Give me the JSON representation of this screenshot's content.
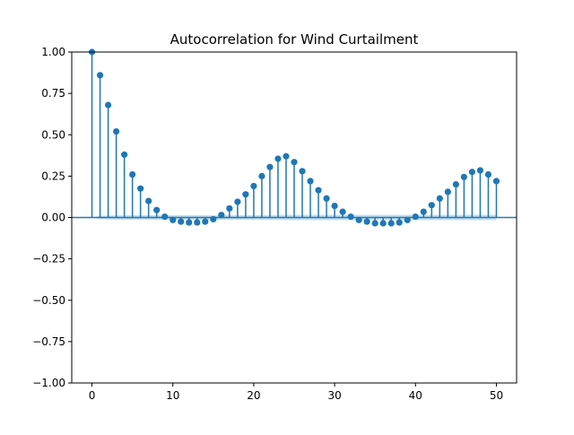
{
  "chart_data": {
    "type": "stem",
    "title": "Autocorrelation for Wind Curtailment",
    "xlabel": "",
    "ylabel": "",
    "xlim": [
      -2.5,
      52.5
    ],
    "ylim": [
      -1.0,
      1.0
    ],
    "x_ticks": [
      0,
      10,
      20,
      30,
      40,
      50
    ],
    "y_ticks": [
      -1.0,
      -0.75,
      -0.5,
      -0.25,
      0.0,
      0.25,
      0.5,
      0.75,
      1.0
    ],
    "x_tick_labels": [
      "0",
      "10",
      "20",
      "30",
      "40",
      "50"
    ],
    "y_tick_labels": [
      "−1.00",
      "−0.75",
      "−0.50",
      "−0.25",
      "0.00",
      "0.25",
      "0.50",
      "0.75",
      "1.00"
    ],
    "lags": [
      0,
      1,
      2,
      3,
      4,
      5,
      6,
      7,
      8,
      9,
      10,
      11,
      12,
      13,
      14,
      15,
      16,
      17,
      18,
      19,
      20,
      21,
      22,
      23,
      24,
      25,
      26,
      27,
      28,
      29,
      30,
      31,
      32,
      33,
      34,
      35,
      36,
      37,
      38,
      39,
      40,
      41,
      42,
      43,
      44,
      45,
      46,
      47,
      48,
      49,
      50
    ],
    "values": [
      1.0,
      0.86,
      0.68,
      0.52,
      0.38,
      0.26,
      0.175,
      0.1,
      0.045,
      0.005,
      -0.015,
      -0.025,
      -0.03,
      -0.03,
      -0.025,
      -0.01,
      0.015,
      0.055,
      0.095,
      0.14,
      0.19,
      0.25,
      0.305,
      0.355,
      0.37,
      0.335,
      0.28,
      0.22,
      0.165,
      0.115,
      0.07,
      0.035,
      0.005,
      -0.015,
      -0.025,
      -0.035,
      -0.035,
      -0.035,
      -0.03,
      -0.015,
      0.005,
      0.035,
      0.075,
      0.115,
      0.155,
      0.2,
      0.245,
      0.275,
      0.285,
      0.26,
      0.22
    ],
    "confidence_band": {
      "lags": [
        0,
        1,
        2,
        3,
        4,
        5,
        6,
        7,
        8,
        9,
        10,
        11,
        12,
        13,
        14,
        15,
        16,
        17,
        18,
        19,
        20,
        21,
        22,
        23,
        24,
        25,
        26,
        27,
        28,
        29,
        30,
        31,
        32,
        33,
        34,
        35,
        36,
        37,
        38,
        39,
        40,
        41,
        42,
        43,
        44,
        45,
        46,
        47,
        48,
        49,
        50
      ],
      "upper": [
        0.0,
        0.01,
        0.012,
        0.013,
        0.014,
        0.014,
        0.014,
        0.014,
        0.014,
        0.014,
        0.014,
        0.014,
        0.014,
        0.014,
        0.014,
        0.014,
        0.014,
        0.014,
        0.014,
        0.014,
        0.014,
        0.015,
        0.015,
        0.015,
        0.016,
        0.016,
        0.016,
        0.016,
        0.016,
        0.016,
        0.016,
        0.016,
        0.016,
        0.016,
        0.016,
        0.016,
        0.016,
        0.016,
        0.016,
        0.016,
        0.016,
        0.016,
        0.016,
        0.016,
        0.016,
        0.016,
        0.016,
        0.017,
        0.017,
        0.017,
        0.017
      ]
    },
    "grid": false,
    "colors": {
      "stem": "#1f77b4",
      "marker": "#1f77b4",
      "band": "#1f77b4",
      "zero_line": "#1f77b4"
    }
  }
}
